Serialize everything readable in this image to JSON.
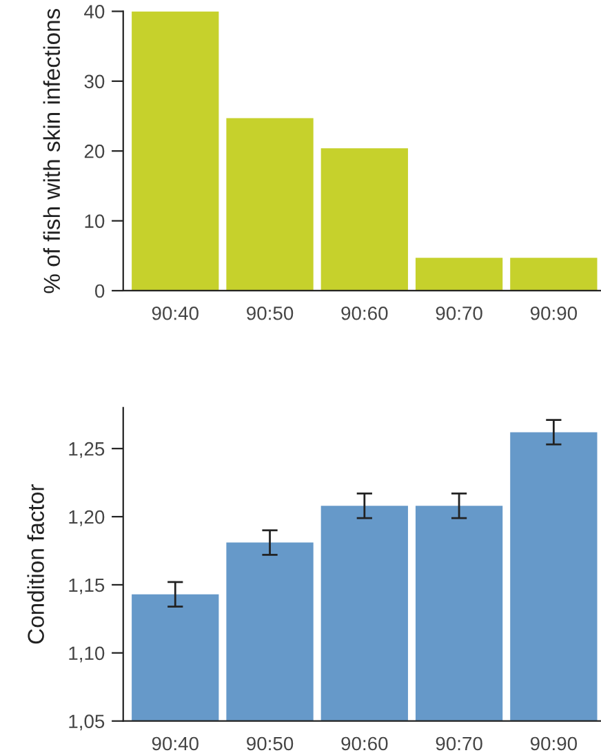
{
  "chart_data": [
    {
      "type": "bar",
      "ylabel": "% of fish with skin infections",
      "categories": [
        "90:40",
        "90:50",
        "90:60",
        "90:70",
        "90:90"
      ],
      "values": [
        40,
        24.7,
        20.4,
        4.7,
        4.7
      ],
      "color": "#c6d12c",
      "ylim": [
        0,
        40
      ],
      "yticks": [
        0,
        10,
        20,
        30,
        40
      ],
      "grid": false
    },
    {
      "type": "bar",
      "ylabel": "Condition factor",
      "categories": [
        "90:40",
        "90:50",
        "90:60",
        "90:70",
        "90:90"
      ],
      "values": [
        1.143,
        1.181,
        1.208,
        1.208,
        1.262
      ],
      "errors": [
        0.009,
        0.009,
        0.009,
        0.009,
        0.009
      ],
      "color": "#6699c9",
      "ylim": [
        1.05,
        1.28
      ],
      "yticks": [
        {
          "value": 1.05,
          "label": "1,05"
        },
        {
          "value": 1.1,
          "label": "1,10"
        },
        {
          "value": 1.15,
          "label": "1,15"
        },
        {
          "value": 1.2,
          "label": "1,20"
        },
        {
          "value": 1.25,
          "label": "1,25"
        }
      ],
      "grid": false
    }
  ]
}
